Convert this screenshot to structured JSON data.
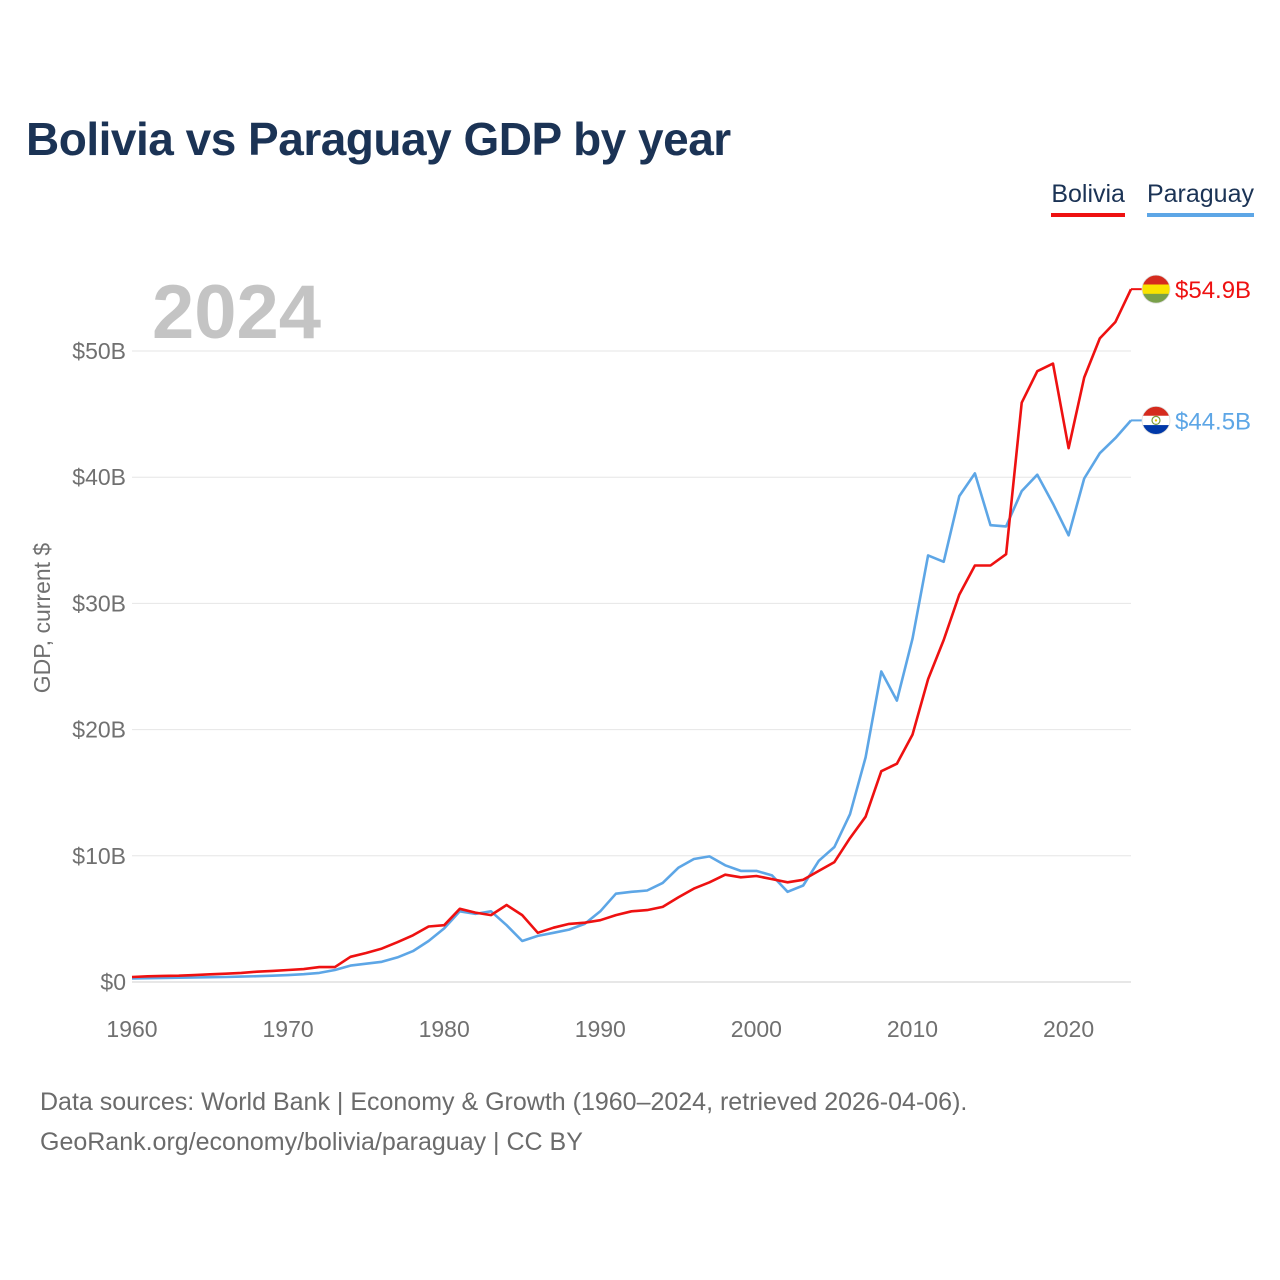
{
  "title": "Bolivia vs Paraguay GDP by year",
  "footer": {
    "line1": "Data sources: World Bank | Economy & Growth (1960–2024, retrieved 2026-04-06).",
    "line2": "GeoRank.org/economy/bolivia/paraguay | CC BY"
  },
  "chart_data": {
    "type": "line",
    "title": "Bolivia vs Paraguay GDP by year",
    "ylabel": "GDP, current $",
    "xlabel": "",
    "year_label": "2024",
    "xlim": [
      1960,
      2024
    ],
    "ylim": [
      0,
      50
    ],
    "xticks": [
      1960,
      1970,
      1980,
      1990,
      2000,
      2010,
      2020
    ],
    "xtick_labels": [
      "1960",
      "1970",
      "1980",
      "1990",
      "2000",
      "2010",
      "2020"
    ],
    "yticks": [
      0,
      10,
      20,
      30,
      40,
      50
    ],
    "ytick_labels": [
      "$0",
      "$10B",
      "$20B",
      "$30B",
      "$40B",
      "$50B"
    ],
    "grid": true,
    "legend": "top-right",
    "series": [
      {
        "name": "Bolivia",
        "color": "#ee1111",
        "end_label": "$54.9B",
        "flag": "bolivia-flag-icon",
        "x": [
          1960,
          1961,
          1962,
          1963,
          1964,
          1965,
          1966,
          1967,
          1968,
          1969,
          1970,
          1971,
          1972,
          1973,
          1974,
          1975,
          1976,
          1977,
          1978,
          1979,
          1980,
          1981,
          1982,
          1983,
          1984,
          1985,
          1986,
          1987,
          1988,
          1989,
          1990,
          1991,
          1992,
          1993,
          1994,
          1995,
          1996,
          1997,
          1998,
          1999,
          2000,
          2001,
          2002,
          2003,
          2004,
          2005,
          2006,
          2007,
          2008,
          2009,
          2010,
          2011,
          2012,
          2013,
          2014,
          2015,
          2016,
          2017,
          2018,
          2019,
          2020,
          2021,
          2022,
          2023,
          2024
        ],
        "values": [
          0.4,
          0.45,
          0.48,
          0.5,
          0.55,
          0.61,
          0.66,
          0.72,
          0.82,
          0.88,
          0.95,
          1.02,
          1.18,
          1.18,
          2.0,
          2.3,
          2.65,
          3.15,
          3.7,
          4.4,
          4.5,
          5.8,
          5.5,
          5.3,
          6.1,
          5.3,
          3.9,
          4.3,
          4.6,
          4.7,
          4.9,
          5.3,
          5.6,
          5.7,
          5.95,
          6.7,
          7.4,
          7.9,
          8.5,
          8.3,
          8.4,
          8.15,
          7.9,
          8.1,
          8.8,
          9.5,
          11.4,
          13.1,
          16.7,
          17.3,
          19.6,
          24.0,
          27.1,
          30.7,
          33.0,
          33.0,
          33.9,
          45.9,
          48.4,
          49.0,
          42.3,
          47.9,
          51.0,
          52.3,
          54.9
        ]
      },
      {
        "name": "Paraguay",
        "color": "#5da6e6",
        "end_label": "$44.5B",
        "flag": "paraguay-flag-icon",
        "x": [
          1960,
          1961,
          1962,
          1963,
          1964,
          1965,
          1966,
          1967,
          1968,
          1969,
          1970,
          1971,
          1972,
          1973,
          1974,
          1975,
          1976,
          1977,
          1978,
          1979,
          1980,
          1981,
          1982,
          1983,
          1984,
          1985,
          1986,
          1987,
          1988,
          1989,
          1990,
          1991,
          1992,
          1993,
          1994,
          1995,
          1996,
          1997,
          1998,
          1999,
          2000,
          2001,
          2002,
          2003,
          2004,
          2005,
          2006,
          2007,
          2008,
          2009,
          2010,
          2011,
          2012,
          2013,
          2014,
          2015,
          2016,
          2017,
          2018,
          2019,
          2020,
          2021,
          2022,
          2023,
          2024
        ],
        "values": [
          0.28,
          0.3,
          0.32,
          0.34,
          0.36,
          0.38,
          0.4,
          0.43,
          0.46,
          0.5,
          0.55,
          0.62,
          0.72,
          0.95,
          1.3,
          1.45,
          1.6,
          1.95,
          2.45,
          3.25,
          4.25,
          5.6,
          5.4,
          5.6,
          4.5,
          3.25,
          3.65,
          3.9,
          4.15,
          4.6,
          5.6,
          7.0,
          7.15,
          7.25,
          7.85,
          9.05,
          9.75,
          9.95,
          9.25,
          8.8,
          8.8,
          8.45,
          7.15,
          7.65,
          9.6,
          10.7,
          13.3,
          17.8,
          24.6,
          22.3,
          27.2,
          33.8,
          33.3,
          38.5,
          40.3,
          36.2,
          36.1,
          38.9,
          40.2,
          37.9,
          35.4,
          39.9,
          41.9,
          43.1,
          44.5
        ]
      }
    ]
  }
}
